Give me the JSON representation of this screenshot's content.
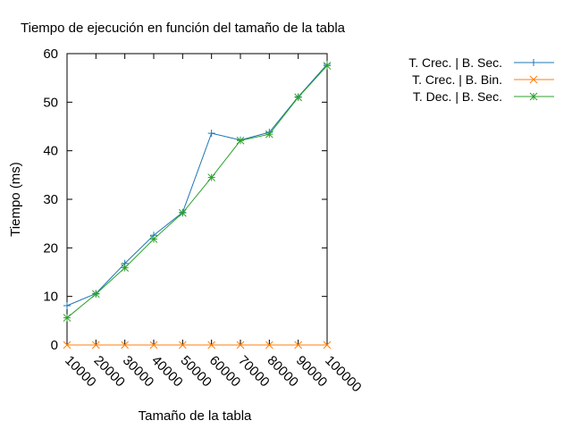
{
  "chart_data": {
    "type": "line",
    "title": "Tiempo de ejecución en función del tamaño de la tabla",
    "xlabel": "Tamaño de la tabla",
    "ylabel": "Tiempo (ms)",
    "categories": [
      "10000",
      "20000",
      "30000",
      "40000",
      "50000",
      "60000",
      "70000",
      "80000",
      "90000",
      "100000"
    ],
    "ylim": [
      0,
      60
    ],
    "yticks": [
      0,
      10,
      20,
      30,
      40,
      50,
      60
    ],
    "xtick_rotation": "diagonal",
    "grid": false,
    "legend_position": "outside-right-top",
    "series": [
      {
        "name": "T. Crec. | B. Sec.",
        "color": "#1f77b4",
        "marker": "plus",
        "values": [
          8.1,
          10.6,
          16.8,
          22.6,
          27.3,
          43.6,
          42.2,
          43.8,
          51.1,
          57.8
        ]
      },
      {
        "name": "T. Crec. | B. Bin.",
        "color": "#ff7f0e",
        "marker": "cross",
        "values": [
          0,
          0,
          0,
          0,
          0,
          0,
          0,
          0,
          0,
          0
        ]
      },
      {
        "name": "T. Dec. | B. Sec.",
        "color": "#2ca02c",
        "marker": "star",
        "values": [
          5.6,
          10.5,
          15.9,
          21.8,
          27.2,
          34.5,
          42.1,
          43.4,
          51.0,
          57.5
        ]
      }
    ]
  }
}
